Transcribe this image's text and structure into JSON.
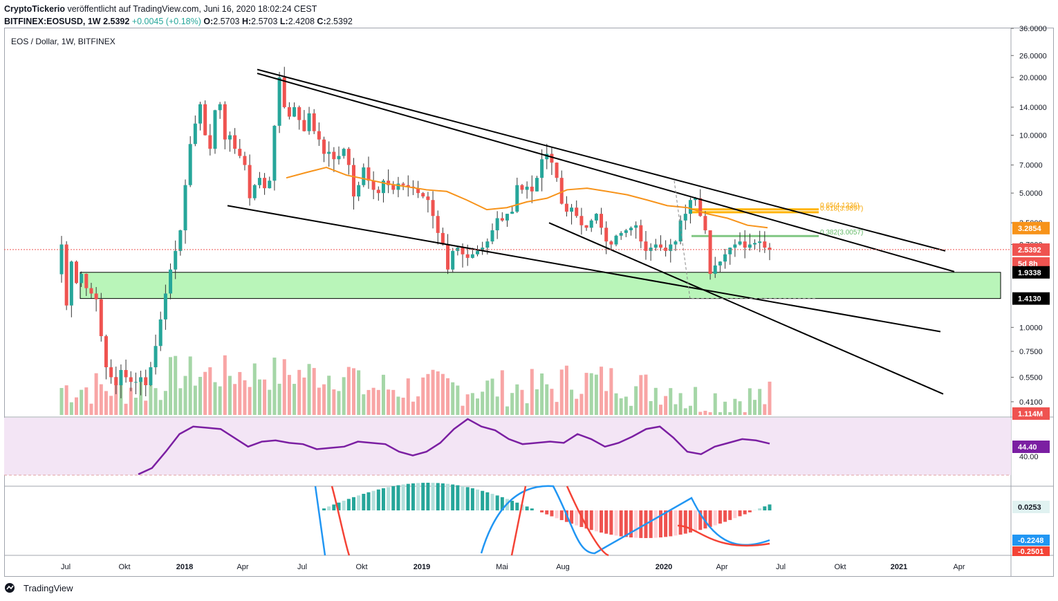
{
  "header": {
    "publisher": "CryptoTickerio",
    "published_text": "veröffentlicht auf TradingView.com, Juni 16, 2020 18:02:24 CEST",
    "symbol": "BITFINEX:EOSUSD, 1W",
    "last": "2.5392",
    "change": "+0.0045 (+0.18%)",
    "ohlc": {
      "o": "O:",
      "o_val": "2.5703",
      "h": "H:",
      "h_val": "2.5703",
      "l": "L:",
      "l_val": "2.4208",
      "c": "C:",
      "c_val": "2.5392"
    }
  },
  "chart_label": "EOS / Dollar, 1W, BITFINEX",
  "footer": {
    "brand": "TradingView"
  },
  "colors": {
    "up": "#26a69a",
    "down": "#ef5350",
    "ma": "#f7931a",
    "rsi": "#7b1fa2",
    "macd": "#2196f3",
    "signal": "#f44336",
    "zone": "#b9f5b9"
  },
  "chart_data": {
    "type": "candlestick",
    "scale": "log",
    "ylim": [
      0.35,
      36
    ],
    "price_axis_ticks": [
      "36.0000",
      "26.0000",
      "20.0000",
      "14.0000",
      "10.0000",
      "7.0000",
      "5.0000",
      "3.5000",
      "2.7000",
      "1.0000",
      "0.7500",
      "0.5500",
      "0.4100"
    ],
    "time_axis_labels": [
      "Jul",
      "Okt",
      "2018",
      "Apr",
      "Jul",
      "Okt",
      "2019",
      "Mai",
      "Aug",
      "2020",
      "Apr",
      "Jul",
      "Okt",
      "2021",
      "Apr"
    ],
    "price_badges": [
      {
        "value": "3.2854",
        "color": "#f7931a"
      },
      {
        "value": "2.5392",
        "color": "#ef5350"
      },
      {
        "value": "5d 8h",
        "color": "#ef5350"
      },
      {
        "value": "1.9338",
        "color": "#000000"
      },
      {
        "value": "1.4130",
        "color": "#000000"
      },
      {
        "value": "1.114M",
        "color": "#ef5350"
      }
    ],
    "fib_labels": [
      {
        "text": "0.65(4.1336)",
        "value": 4.13
      },
      {
        "text": "0.618(3.9897)",
        "value": 3.99
      },
      {
        "text": "0.382(3.0057)",
        "value": 3.0
      }
    ],
    "support_zone": [
      1.413,
      1.9338
    ],
    "series": [
      {
        "name": "EOSUSD",
        "closes": [
          2.7,
          1.3,
          2.2,
          1.7,
          1.9,
          1.6,
          1.5,
          1.4,
          0.9,
          0.62,
          0.55,
          0.5,
          0.6,
          0.55,
          0.52,
          0.52,
          0.55,
          0.5,
          0.62,
          0.8,
          1.1,
          1.5,
          2.0,
          2.5,
          3.2,
          5.5,
          9.0,
          11.5,
          14.5,
          10.0,
          8.5,
          13.5,
          14.5,
          9.5,
          10.0,
          8.5,
          7.8,
          7.0,
          4.7,
          5.5,
          6.0,
          5.3,
          5.8,
          11.2,
          20.0,
          14.0,
          12.5,
          14.0,
          12.0,
          10.5,
          13.0,
          10.5,
          9.5,
          8.0,
          8.2,
          7.5,
          7.8,
          8.5,
          7.0,
          4.8,
          5.5,
          6.8,
          5.8,
          5.2,
          5.0,
          5.8,
          5.5,
          5.2,
          5.6,
          5.5,
          5.4,
          5.3,
          5.0,
          4.8,
          4.6,
          3.8,
          3.1,
          2.7,
          2.0,
          2.5,
          2.6,
          2.4,
          2.3,
          2.4,
          2.5,
          2.6,
          2.8,
          3.2,
          3.7,
          3.6,
          3.9,
          4.0,
          5.5,
          5.2,
          5.4,
          5.1,
          6.0,
          7.5,
          8.0,
          7.2,
          6.0,
          4.4,
          4.0,
          4.2,
          3.8,
          3.4,
          3.3,
          3.6,
          3.9,
          3.3,
          2.8,
          2.7,
          3.0,
          3.1,
          3.2,
          3.3,
          3.4,
          2.8,
          2.5,
          2.6,
          2.7,
          2.6,
          2.5,
          2.7,
          2.8,
          3.6,
          3.9,
          4.6,
          4.7,
          3.8,
          3.2,
          1.9,
          2.1,
          2.2,
          2.4,
          2.6,
          2.7,
          2.8,
          2.6,
          2.7,
          2.75,
          2.8,
          2.6,
          2.5392
        ]
      },
      {
        "name": "MA",
        "values": [
          6.0,
          6.4,
          6.8,
          6.2,
          5.9,
          5.6,
          5.4,
          5.2,
          5.1,
          4.6,
          4.1,
          4.2,
          4.5,
          4.7,
          5.2,
          5.3,
          5.1,
          4.9,
          4.6,
          4.3,
          4.2,
          3.9,
          3.7,
          3.4,
          3.3
        ]
      }
    ],
    "rsi": {
      "values": [
        20,
        25,
        38,
        52,
        58,
        57,
        56,
        49,
        42,
        46,
        47,
        45,
        44,
        40,
        41,
        42,
        46,
        45,
        44,
        38,
        35,
        38,
        45,
        56,
        64,
        58,
        55,
        48,
        44,
        45,
        46,
        45,
        52,
        48,
        42,
        45,
        50,
        56,
        58,
        49,
        38,
        36,
        42,
        45,
        48,
        47,
        44.4
      ],
      "level": "44.40",
      "tick": "40.00"
    },
    "macd": {
      "hist_value": "0.0253",
      "macd_value": "-0.2248",
      "signal_value": "-0.2501"
    }
  }
}
